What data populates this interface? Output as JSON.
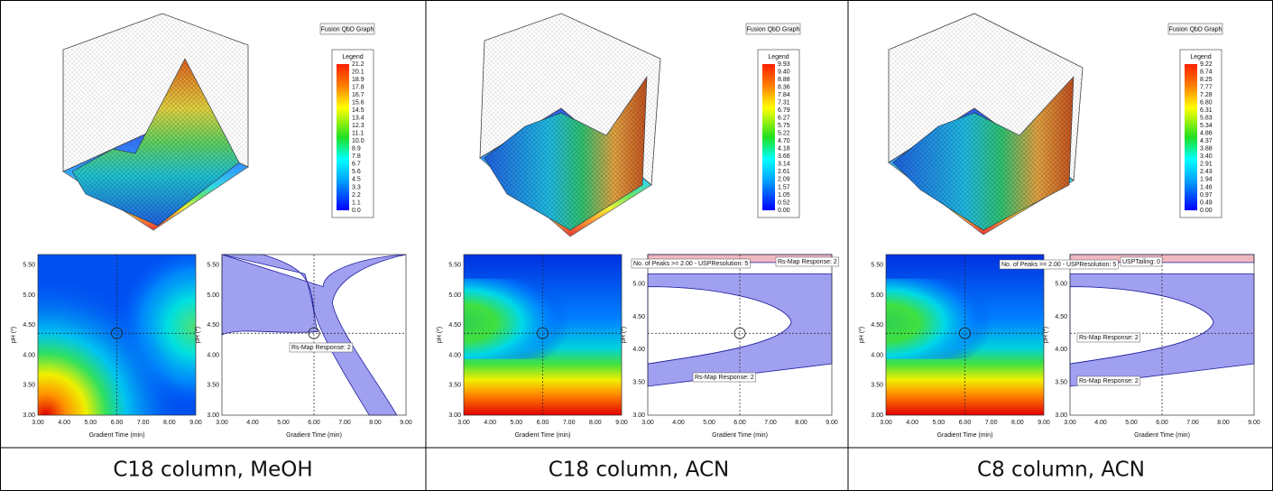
{
  "panels": [
    {
      "caption": "C18 column, MeOH",
      "graph_label": "Fusion QbD Graph",
      "legend": {
        "title": "Legend",
        "values": [
          "21.2",
          "20.1",
          "18.9",
          "17.8",
          "16.7",
          "15.6",
          "14.5",
          "13.4",
          "12.3",
          "11.1",
          "10.0",
          "8.9",
          "7.8",
          "6.7",
          "5.6",
          "4.5",
          "3.3",
          "2.2",
          "1.1",
          "0.0"
        ]
      },
      "contour": {
        "x_label": "Gradient Time (min)",
        "y_label": "pH (*)",
        "xticks": [
          "3.00",
          "4.00",
          "5.00",
          "6.00",
          "7.00",
          "8.00",
          "9.00"
        ],
        "yticks": [
          "3.00",
          "3.50",
          "4.00",
          "4.50",
          "5.00",
          "5.50"
        ]
      },
      "design_space": {
        "x_label": "Gradient Time (min)",
        "y_label": "pH (*)",
        "xticks": [
          "3.00",
          "4.00",
          "5.00",
          "6.00",
          "7.00",
          "8.00",
          "9.00"
        ],
        "yticks": [
          "3.00",
          "3.50",
          "4.00",
          "4.50",
          "5.00",
          "5.50"
        ],
        "annotations": [
          "Rs-Map Response: 2"
        ]
      }
    },
    {
      "caption": "C18 column, ACN",
      "graph_label": "Fusion QbD Graph",
      "legend": {
        "title": "Legend",
        "values": [
          "9.93",
          "9.40",
          "8.88",
          "8.36",
          "7.84",
          "7.31",
          "6.79",
          "6.27",
          "5.75",
          "5.22",
          "4.70",
          "4.18",
          "3.66",
          "3.14",
          "2.61",
          "2.09",
          "1.57",
          "1.05",
          "0.52",
          "0.00"
        ]
      },
      "contour": {
        "x_label": "Gradient Time (min)",
        "y_label": "pH (*)",
        "xticks": [
          "3.00",
          "4.00",
          "5.00",
          "6.00",
          "7.00",
          "8.00",
          "9.00"
        ],
        "yticks": [
          "3.00",
          "3.50",
          "4.00",
          "4.50",
          "5.00",
          "5.50"
        ]
      },
      "design_space": {
        "x_label": "Gradient Time (min)",
        "y_label": "pH (*)",
        "xticks": [
          "3.00",
          "4.00",
          "5.00",
          "6.00",
          "7.00",
          "8.00",
          "9.00"
        ],
        "yticks": [
          "3.00",
          "3.50",
          "4.00",
          "4.50",
          "5.00"
        ],
        "annotations": [
          "No. of Peaks >= 2.00 - USPResolution: 5",
          "Rs-Map Response: 2",
          "Rs-Map Response: 2"
        ]
      }
    },
    {
      "caption": "C8 column, ACN",
      "graph_label": "Fusion QbD Graph",
      "legend": {
        "title": "Legend",
        "values": [
          "9.22",
          "8.74",
          "8.25",
          "7.77",
          "7.28",
          "6.80",
          "6.31",
          "5.83",
          "5.34",
          "4.86",
          "4.37",
          "3.88",
          "3.40",
          "2.91",
          "2.43",
          "1.94",
          "1.46",
          "0.97",
          "0.49",
          "0.00"
        ]
      },
      "contour": {
        "x_label": "Gradient Time (min)",
        "y_label": "pH (*)",
        "xticks": [
          "3.00",
          "4.00",
          "5.00",
          "6.00",
          "7.00",
          "8.00",
          "9.00"
        ],
        "yticks": [
          "3.00",
          "3.50",
          "4.00",
          "4.50",
          "5.00",
          "5.50"
        ]
      },
      "design_space": {
        "x_label": "Gradient Time (min)",
        "y_label": "pH (*)",
        "xticks": [
          "3.00",
          "4.00",
          "5.00",
          "6.00",
          "7.00",
          "8.00",
          "9.00"
        ],
        "yticks": [
          "3.00",
          "3.50",
          "4.00",
          "4.50",
          "5.00"
        ],
        "annotations": [
          "No. of Peaks >= 2.00 - USPResolution: 5",
          "USPTailing: 0",
          "Rs-Map Response: 2",
          "Rs-Map Response: 2"
        ]
      }
    }
  ]
}
